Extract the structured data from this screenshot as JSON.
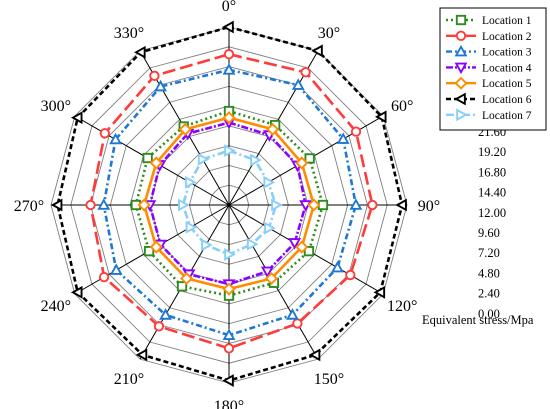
{
  "chart_data": {
    "type": "radar",
    "angles": [
      0,
      30,
      60,
      90,
      120,
      150,
      180,
      210,
      240,
      270,
      300,
      330
    ],
    "angle_labels": [
      "0°",
      "30°",
      "60°",
      "90°",
      "120°",
      "150°",
      "180°",
      "210°",
      "240°",
      "270°",
      "300°",
      "330°"
    ],
    "radial_ticks": [
      "0.00",
      "2.40",
      "4.80",
      "7.20",
      "9.60",
      "12.00",
      "14.40",
      "16.80",
      "19.20",
      "21.60"
    ],
    "radial_values": [
      0,
      2.4,
      4.8,
      7.2,
      9.6,
      12.0,
      14.4,
      16.8,
      19.2,
      21.6
    ],
    "rmax": 21.6,
    "radial_axis_label": "Equivalent stress/Mpa",
    "legend_position": "top-right",
    "series": [
      {
        "name": "Location 1",
        "color": "#2e8b1e",
        "dash": "2,3",
        "marker": "square",
        "values": [
          11.4,
          11.2,
          11.3,
          11.4,
          11.2,
          10.9,
          11.0,
          11.4,
          11.2,
          11.3,
          11.4,
          11.0
        ]
      },
      {
        "name": "Location 2",
        "color": "#ff3b3b",
        "dash": "13,5",
        "marker": "circle",
        "values": [
          18.3,
          18.6,
          17.8,
          17.4,
          17.0,
          16.6,
          17.4,
          17.0,
          17.5,
          16.8,
          17.4,
          18.1
        ]
      },
      {
        "name": "Location 3",
        "color": "#1f77d4",
        "dash": "6,3,2,3",
        "marker": "triangle-up",
        "values": [
          16.4,
          16.8,
          16.0,
          15.4,
          15.2,
          15.4,
          15.8,
          15.4,
          15.8,
          15.2,
          15.9,
          16.6
        ]
      },
      {
        "name": "Location 4",
        "color": "#8b00ff",
        "dash": "7,2,2,2",
        "marker": "triangle-down",
        "values": [
          10.0,
          9.8,
          9.6,
          9.3,
          9.2,
          9.3,
          9.6,
          9.7,
          9.6,
          9.6,
          9.7,
          10.0
        ]
      },
      {
        "name": "Location 5",
        "color": "#ff8c00",
        "dash": "none",
        "marker": "diamond",
        "values": [
          10.6,
          10.6,
          10.2,
          10.3,
          10.2,
          10.3,
          10.2,
          10.3,
          10.2,
          10.3,
          10.2,
          10.6
        ]
      },
      {
        "name": "Location 6",
        "color": "#000000",
        "dash": "5,3",
        "marker": "triangle-left",
        "values": [
          21.6,
          21.6,
          21.4,
          21.0,
          21.2,
          21.0,
          21.3,
          21.0,
          21.2,
          20.8,
          21.2,
          21.4
        ]
      },
      {
        "name": "Location 7",
        "color": "#87cefa",
        "dash": "8,3,2,3",
        "marker": "triangle-right",
        "values": [
          6.6,
          6.3,
          5.5,
          5.7,
          5.6,
          5.5,
          6.0,
          5.6,
          5.4,
          5.6,
          5.5,
          6.4
        ]
      }
    ]
  }
}
